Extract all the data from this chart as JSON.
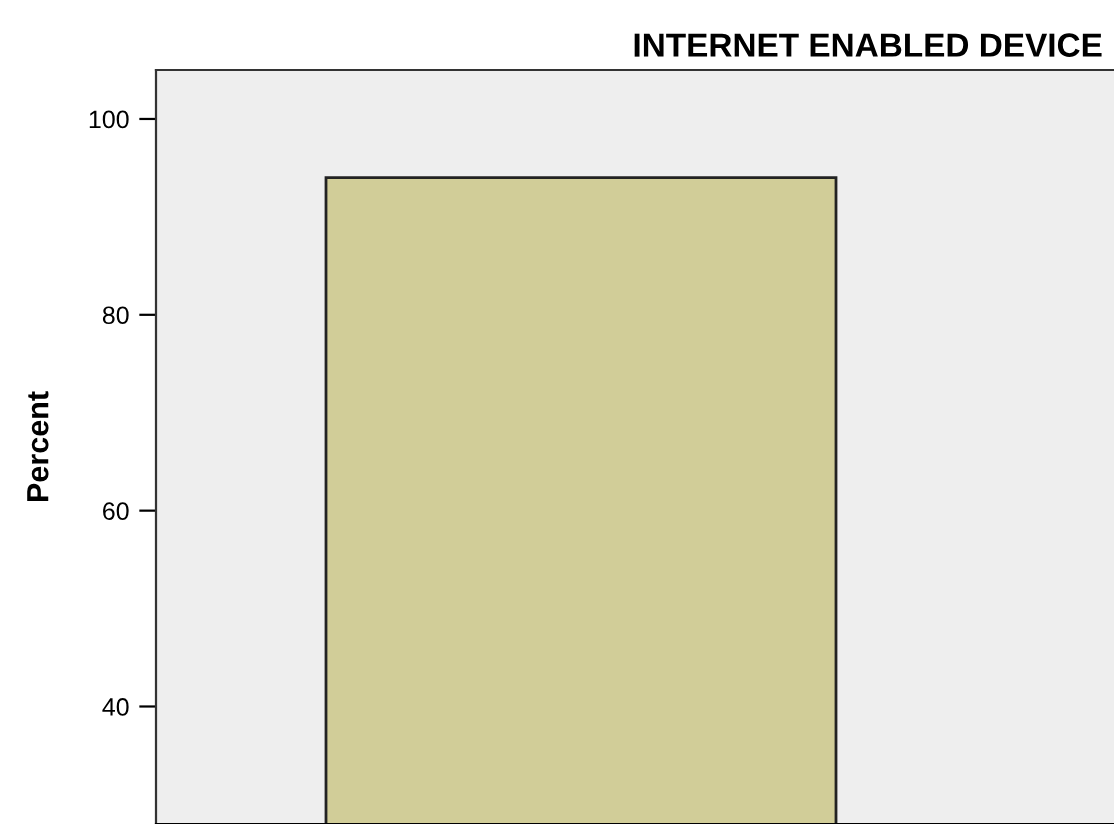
{
  "chart_data": {
    "type": "bar",
    "title": "INTERNET ENABLED DEVICE",
    "ylabel": "Percent",
    "categories": [
      null
    ],
    "values": [
      94
    ],
    "color": "#d1cd98",
    "ylim": [
      28,
      105
    ],
    "yticks": [
      40,
      60,
      80,
      100
    ],
    "grid": false,
    "tick_labels": "y"
  }
}
